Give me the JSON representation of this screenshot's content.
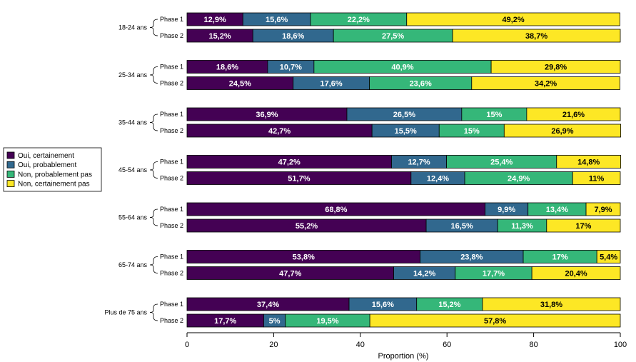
{
  "chart_data": {
    "type": "bar",
    "orientation": "horizontal",
    "stacked": true,
    "title": "",
    "xlabel": "Proportion (%)",
    "ylabel": "",
    "xlim": [
      0,
      100
    ],
    "xticks": [
      0,
      20,
      40,
      60,
      80,
      100
    ],
    "legend_position": "left",
    "categories_legend": [
      "Oui, certainement",
      "Oui, probablement",
      "Non, probablement pas",
      "Non, certainement pas"
    ],
    "colors": [
      "#440154",
      "#31688e",
      "#35b779",
      "#fde725"
    ],
    "groups": [
      {
        "name": "18-24 ans",
        "bars": [
          {
            "phase": "Phase 1",
            "values": [
              12.9,
              15.6,
              22.2,
              49.2
            ],
            "labels": [
              "12,9%",
              "15,6%",
              "22,2%",
              "49,2%"
            ]
          },
          {
            "phase": "Phase 2",
            "values": [
              15.2,
              18.6,
              27.5,
              38.7
            ],
            "labels": [
              "15,2%",
              "18,6%",
              "27,5%",
              "38,7%"
            ]
          }
        ]
      },
      {
        "name": "25-34 ans",
        "bars": [
          {
            "phase": "Phase 1",
            "values": [
              18.6,
              10.7,
              40.9,
              29.8
            ],
            "labels": [
              "18,6%",
              "10,7%",
              "40,9%",
              "29,8%"
            ]
          },
          {
            "phase": "Phase 2",
            "values": [
              24.5,
              17.6,
              23.6,
              34.2
            ],
            "labels": [
              "24,5%",
              "17,6%",
              "23,6%",
              "34,2%"
            ]
          }
        ]
      },
      {
        "name": "35-44 ans",
        "bars": [
          {
            "phase": "Phase 1",
            "values": [
              36.9,
              26.5,
              15,
              21.6
            ],
            "labels": [
              "36,9%",
              "26,5%",
              "15%",
              "21,6%"
            ]
          },
          {
            "phase": "Phase 2",
            "values": [
              42.7,
              15.5,
              15,
              26.9
            ],
            "labels": [
              "42,7%",
              "15,5%",
              "15%",
              "26,9%"
            ]
          }
        ]
      },
      {
        "name": "45-54 ans",
        "bars": [
          {
            "phase": "Phase 1",
            "values": [
              47.2,
              12.7,
              25.4,
              14.8
            ],
            "labels": [
              "47,2%",
              "12,7%",
              "25,4%",
              "14,8%"
            ]
          },
          {
            "phase": "Phase 2",
            "values": [
              51.7,
              12.4,
              24.9,
              11
            ],
            "labels": [
              "51,7%",
              "12,4%",
              "24,9%",
              "11%"
            ]
          }
        ]
      },
      {
        "name": "55-64 ans",
        "bars": [
          {
            "phase": "Phase 1",
            "values": [
              68.8,
              9.9,
              13.4,
              7.9
            ],
            "labels": [
              "68,8%",
              "9,9%",
              "13,4%",
              "7,9%"
            ]
          },
          {
            "phase": "Phase 2",
            "values": [
              55.2,
              16.5,
              11.3,
              17
            ],
            "labels": [
              "55,2%",
              "16,5%",
              "11,3%",
              "17%"
            ]
          }
        ]
      },
      {
        "name": "65-74 ans",
        "bars": [
          {
            "phase": "Phase 1",
            "values": [
              53.8,
              23.8,
              17,
              5.4
            ],
            "labels": [
              "53,8%",
              "23,8%",
              "17%",
              "5,4%"
            ]
          },
          {
            "phase": "Phase 2",
            "values": [
              47.7,
              14.2,
              17.7,
              20.4
            ],
            "labels": [
              "47,7%",
              "14,2%",
              "17,7%",
              "20,4%"
            ]
          }
        ]
      },
      {
        "name": "Plus de 75 ans",
        "bars": [
          {
            "phase": "Phase 1",
            "values": [
              37.4,
              15.6,
              15.2,
              31.8
            ],
            "labels": [
              "37,4%",
              "15,6%",
              "15,2%",
              "31,8%"
            ]
          },
          {
            "phase": "Phase 2",
            "values": [
              17.7,
              5,
              19.5,
              57.8
            ],
            "labels": [
              "17,7%",
              "5%",
              "19,5%",
              "57,8%"
            ]
          }
        ]
      }
    ]
  }
}
